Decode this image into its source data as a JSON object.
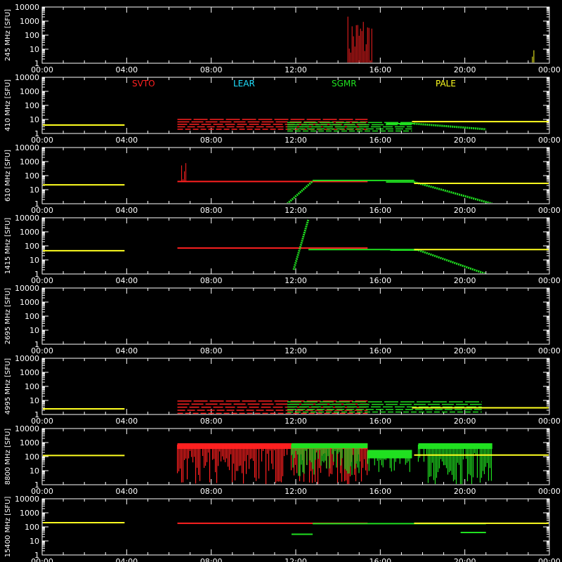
{
  "figure": {
    "background": "#000000",
    "foreground": "#ffffff"
  },
  "chart_data": {
    "type": "scatter",
    "x_axis": {
      "ticks": [
        "00:00",
        "04:00",
        "08:00",
        "12:00",
        "16:00",
        "20:00",
        "00:00"
      ],
      "range_hours": [
        0,
        24
      ]
    },
    "y_axis": {
      "scale": "log",
      "ticks": [
        "1",
        "10",
        "100",
        "1000",
        "10000"
      ],
      "range": [
        1,
        10000
      ]
    },
    "stations": [
      {
        "name": "SVTO",
        "color": "#ff2020"
      },
      {
        "name": "LEAR",
        "color": "#20e0ff"
      },
      {
        "name": "SGMR",
        "color": "#20e020"
      },
      {
        "name": "PALE",
        "color": "#ffff20"
      }
    ],
    "panels": [
      {
        "ylabel": "245 MHz [SFU]",
        "segments": [
          {
            "station": "SVTO",
            "start": 14.4,
            "end": 15.6,
            "level": 1,
            "style": "burst",
            "peak": 4000
          },
          {
            "station": "PALE",
            "start": 23.2,
            "end": 23.3,
            "level": 1,
            "style": "spikes",
            "peak": 10
          }
        ]
      },
      {
        "ylabel": "410 MHz [SFU]",
        "segments": [
          {
            "station": "PALE",
            "start": 0.0,
            "end": 3.9,
            "level": 4,
            "style": "line"
          },
          {
            "station": "SVTO",
            "start": 6.4,
            "end": 15.4,
            "level": 8,
            "style": "band",
            "lo": 2,
            "hi": 10
          },
          {
            "station": "SGMR",
            "start": 11.6,
            "end": 17.5,
            "level": 2.5,
            "style": "band",
            "lo": 1.5,
            "hi": 6
          },
          {
            "station": "SGMR",
            "start": 17.6,
            "end": 21.0,
            "level": 5,
            "style": "decay",
            "to": 2
          },
          {
            "station": "PALE",
            "start": 17.5,
            "end": 24.0,
            "level": 7,
            "style": "line"
          }
        ]
      },
      {
        "ylabel": "610 MHz [SFU]",
        "segments": [
          {
            "station": "PALE",
            "start": 0.0,
            "end": 3.9,
            "level": 22,
            "style": "line"
          },
          {
            "station": "SVTO",
            "start": 6.4,
            "end": 15.4,
            "level": 38,
            "style": "line"
          },
          {
            "station": "SVTO",
            "start": 6.6,
            "end": 6.8,
            "level": 38,
            "style": "spikes",
            "peak": 1000
          },
          {
            "station": "SGMR",
            "start": 11.6,
            "end": 12.8,
            "level": 1,
            "style": "rise",
            "to": 40
          },
          {
            "station": "SGMR",
            "start": 12.8,
            "end": 17.6,
            "level": 45,
            "style": "line"
          },
          {
            "station": "SGMR",
            "start": 17.6,
            "end": 21.3,
            "level": 35,
            "style": "decay",
            "to": 1
          },
          {
            "station": "PALE",
            "start": 17.6,
            "end": 24.0,
            "level": 28,
            "style": "line"
          }
        ]
      },
      {
        "ylabel": "1415 MHz [SFU]",
        "segments": [
          {
            "station": "PALE",
            "start": 0.0,
            "end": 3.9,
            "level": 45,
            "style": "line"
          },
          {
            "station": "SVTO",
            "start": 6.4,
            "end": 15.4,
            "level": 70,
            "style": "line"
          },
          {
            "station": "SGMR",
            "start": 11.9,
            "end": 12.6,
            "level": 2,
            "style": "rise",
            "to": 8000
          },
          {
            "station": "SGMR",
            "start": 12.6,
            "end": 17.8,
            "level": 55,
            "style": "line"
          },
          {
            "station": "SGMR",
            "start": 17.8,
            "end": 21.0,
            "level": 50,
            "style": "decay",
            "to": 1
          },
          {
            "station": "PALE",
            "start": 17.6,
            "end": 24.0,
            "level": 55,
            "style": "line"
          }
        ]
      },
      {
        "ylabel": "2695 MHz [SFU]",
        "segments": [
          {
            "station": "SVTO",
            "start": 6.4,
            "end": 11.8,
            "level": 1,
            "style": "line"
          },
          {
            "station": "SGMR",
            "start": 11.8,
            "end": 21.0,
            "level": 1,
            "style": "line"
          }
        ]
      },
      {
        "ylabel": "4995 MHz [SFU]",
        "segments": [
          {
            "station": "PALE",
            "start": 0.0,
            "end": 3.9,
            "level": 2.5,
            "style": "line"
          },
          {
            "station": "SVTO",
            "start": 6.4,
            "end": 15.4,
            "level": 4,
            "style": "band",
            "lo": 1.2,
            "hi": 9
          },
          {
            "station": "SGMR",
            "start": 11.6,
            "end": 20.8,
            "level": 4,
            "style": "band",
            "lo": 1.5,
            "hi": 8
          },
          {
            "station": "PALE",
            "start": 17.5,
            "end": 24.0,
            "level": 3,
            "style": "line"
          }
        ]
      },
      {
        "ylabel": "8800 MHz [SFU]",
        "segments": [
          {
            "station": "PALE",
            "start": 0.0,
            "end": 3.9,
            "level": 120,
            "style": "line"
          },
          {
            "station": "SVTO",
            "start": 6.4,
            "end": 15.4,
            "level": 700,
            "style": "noise",
            "lo": 1,
            "hi": 900
          },
          {
            "station": "SGMR",
            "start": 11.8,
            "end": 15.4,
            "level": 800,
            "style": "noise",
            "lo": 5,
            "hi": 900
          },
          {
            "station": "SGMR",
            "start": 15.4,
            "end": 17.5,
            "level": 150,
            "style": "noise",
            "lo": 10,
            "hi": 300
          },
          {
            "station": "SGMR",
            "start": 17.8,
            "end": 21.3,
            "level": 700,
            "style": "noise",
            "lo": 1,
            "hi": 900
          },
          {
            "station": "PALE",
            "start": 17.6,
            "end": 24.0,
            "level": 130,
            "style": "line"
          }
        ]
      },
      {
        "ylabel": "15400 MHz [SFU]",
        "segments": [
          {
            "station": "PALE",
            "start": 0.0,
            "end": 3.9,
            "level": 200,
            "style": "line"
          },
          {
            "station": "SVTO",
            "start": 6.4,
            "end": 15.4,
            "level": 180,
            "style": "line"
          },
          {
            "station": "SGMR",
            "start": 11.8,
            "end": 12.8,
            "level": 30,
            "style": "line"
          },
          {
            "station": "SGMR",
            "start": 12.8,
            "end": 21.0,
            "level": 170,
            "style": "line"
          },
          {
            "station": "SGMR",
            "start": 19.8,
            "end": 21.0,
            "level": 40,
            "style": "line"
          },
          {
            "station": "PALE",
            "start": 17.6,
            "end": 24.0,
            "level": 180,
            "style": "line"
          }
        ]
      }
    ]
  }
}
